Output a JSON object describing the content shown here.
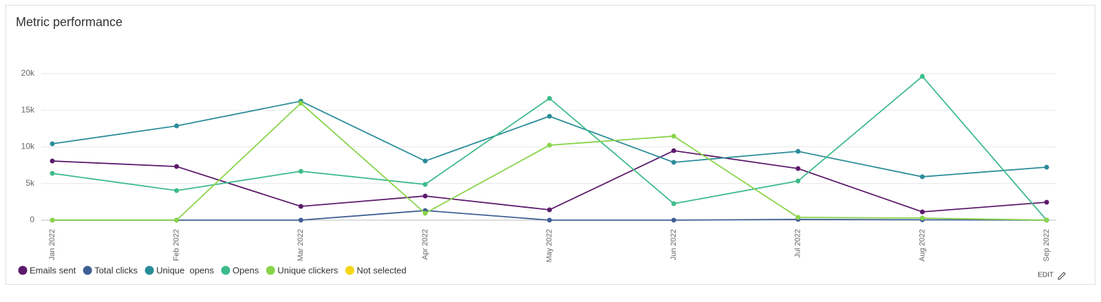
{
  "title": "Metric performance",
  "edit_label": "EDIT",
  "chart_data": {
    "type": "line",
    "categories": [
      "Jan 2022",
      "Feb 2022",
      "Mar 2022",
      "Apr 2022",
      "May 2022",
      "Jun 2022",
      "Jul 2022",
      "Aug 2022",
      "Sep 2022"
    ],
    "series": [
      {
        "name": "Emails sent",
        "color": "#5c1a6b",
        "values": [
          8070,
          7320,
          1880,
          3290,
          1410,
          9480,
          7040,
          1130,
          2440
        ]
      },
      {
        "name": "Total clicks",
        "color": "#3f5f95",
        "values": [
          0,
          0,
          0,
          1310,
          0,
          0,
          100,
          50,
          0
        ]
      },
      {
        "name": "Unique  opens",
        "color": "#2a8c99",
        "values": [
          10420,
          12860,
          16240,
          8070,
          14180,
          7890,
          9390,
          5920,
          7230
        ]
      },
      {
        "name": "Opens",
        "color": "#3dbb8a",
        "values": [
          6380,
          4040,
          6670,
          4880,
          16620,
          2250,
          5350,
          19620,
          0
        ]
      },
      {
        "name": "Unique clickers",
        "color": "#88d44a",
        "values": [
          0,
          0,
          15960,
          940,
          10230,
          11460,
          380,
          280,
          0
        ]
      },
      {
        "name": "Not selected",
        "color": "#f5d617",
        "values": [
          null,
          null,
          null,
          null,
          null,
          null,
          null,
          null,
          null
        ]
      }
    ],
    "ylim": [
      0,
      20000
    ],
    "yticks": [
      0,
      {
        "value": 5000,
        "label": "5k"
      },
      {
        "value": 10000,
        "label": "10k"
      },
      {
        "value": 15000,
        "label": "15k"
      },
      {
        "value": 20000,
        "label": "20k"
      }
    ],
    "grid": true,
    "legend": "bottom-left"
  }
}
